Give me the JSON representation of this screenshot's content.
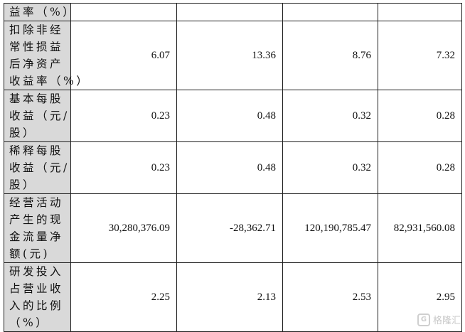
{
  "rows": [
    {
      "label": [
        "益率（%）"
      ],
      "values": [
        "",
        "",
        "",
        ""
      ]
    },
    {
      "label": [
        "扣除非经",
        "常性损益",
        "后净资产",
        "收益率（%）"
      ],
      "values": [
        "6.07",
        "13.36",
        "8.76",
        "7.32"
      ]
    },
    {
      "label": [
        "基本每股",
        "收益（元/",
        "股）"
      ],
      "values": [
        "0.23",
        "0.48",
        "0.32",
        "0.28"
      ]
    },
    {
      "label": [
        "稀释每股",
        "收益（元/",
        "股）"
      ],
      "values": [
        "0.23",
        "0.48",
        "0.32",
        "0.28"
      ]
    },
    {
      "label": [
        "经营活动",
        "产生的现",
        "金流量净",
        "额(元)"
      ],
      "values": [
        "30,280,376.09",
        "-28,362.71",
        "120,190,785.47",
        "82,931,560.08"
      ]
    },
    {
      "label": [
        "研发投入",
        "占营业收",
        "入的比例",
        "（%）"
      ],
      "values": [
        "2.25",
        "2.13",
        "2.53",
        "2.95"
      ]
    }
  ],
  "watermark": {
    "logo_letter": "G",
    "text": "格隆汇"
  }
}
